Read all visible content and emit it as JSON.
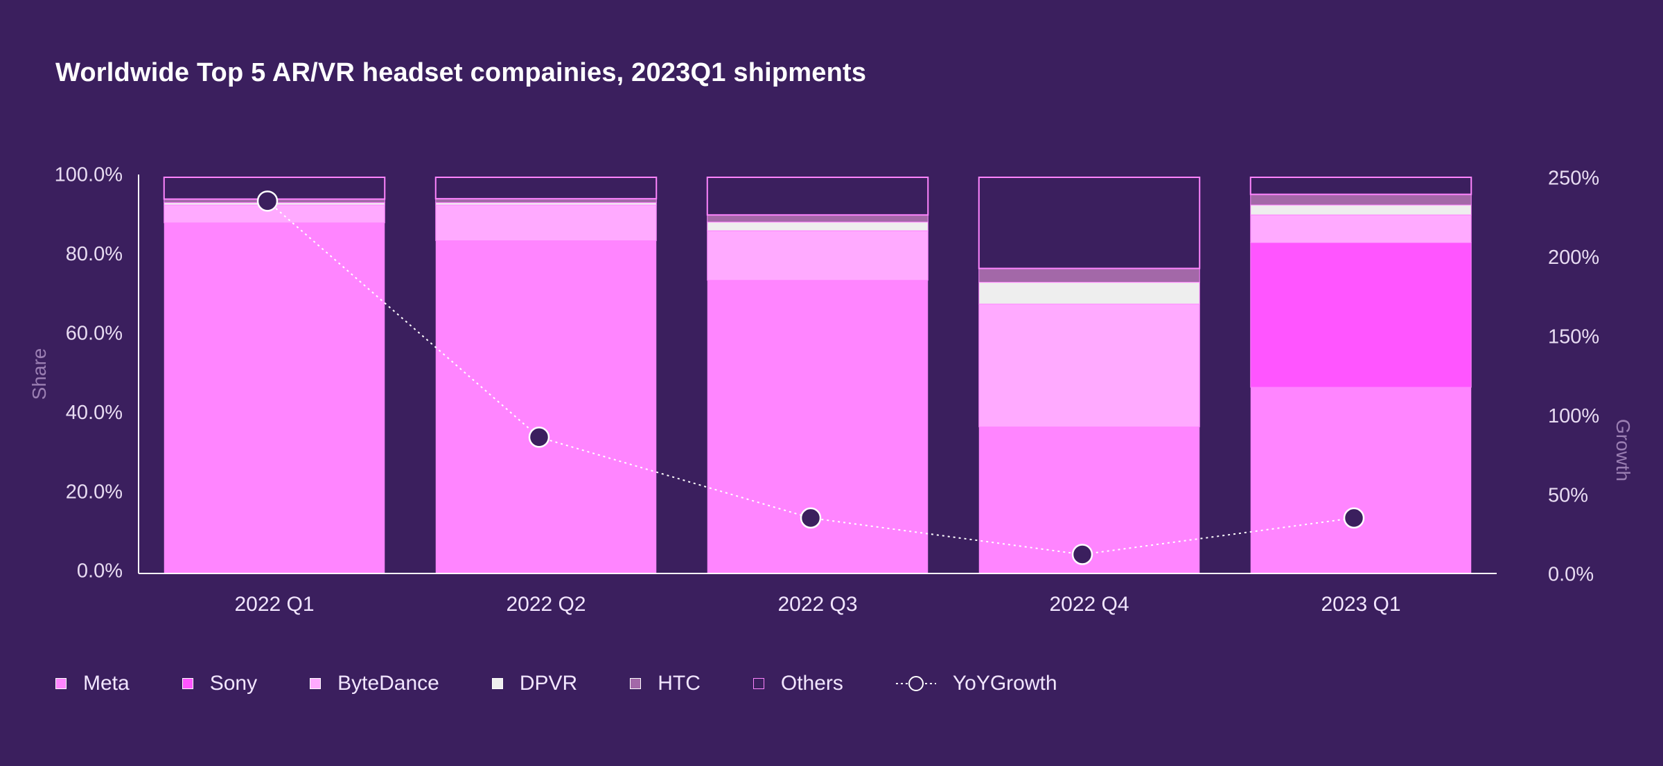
{
  "chart_data": {
    "type": "bar",
    "stacked": true,
    "title": "Worldwide Top 5 AR/VR headset compainies, 2023Q1 shipments",
    "ylabel": "Share",
    "y2label": "Growth",
    "categories": [
      "2022 Q1",
      "2022 Q2",
      "2022 Q3",
      "2022 Q4",
      "2023 Q1"
    ],
    "ylim": [
      0,
      100
    ],
    "y_ticks": [
      "0.0%",
      "20.0%",
      "40.0%",
      "60.0%",
      "80.0%",
      "100.0%"
    ],
    "y2lim": [
      0,
      250
    ],
    "y2_ticks": [
      "0.0%",
      "50%",
      "100%",
      "150%",
      "200%",
      "250%"
    ],
    "series": [
      {
        "name": "Meta",
        "color": "#ff85ff",
        "values": [
          88.5,
          84.0,
          74.0,
          37.0,
          47.0
        ]
      },
      {
        "name": "Sony",
        "color": "#ff55ff",
        "values": [
          0,
          0,
          0,
          0,
          36.5
        ]
      },
      {
        "name": "ByteDance",
        "color": "#ffaaff",
        "values": [
          4.5,
          9.0,
          12.5,
          31.0,
          7.0
        ]
      },
      {
        "name": "DPVR",
        "color": "#eeeeee",
        "values": [
          0.6,
          0.6,
          2.2,
          5.5,
          2.5
        ]
      },
      {
        "name": "HTC",
        "color": "#a368a8",
        "values": [
          0.9,
          1.0,
          1.8,
          3.5,
          2.7
        ]
      },
      {
        "name": "Others",
        "color": "#3b1f5e",
        "values": [
          5.5,
          5.4,
          9.5,
          23.0,
          4.3
        ]
      }
    ],
    "line_series": {
      "name": "YoYGrowth",
      "axis": "right",
      "values": [
        235,
        86,
        35,
        12,
        35
      ]
    }
  }
}
